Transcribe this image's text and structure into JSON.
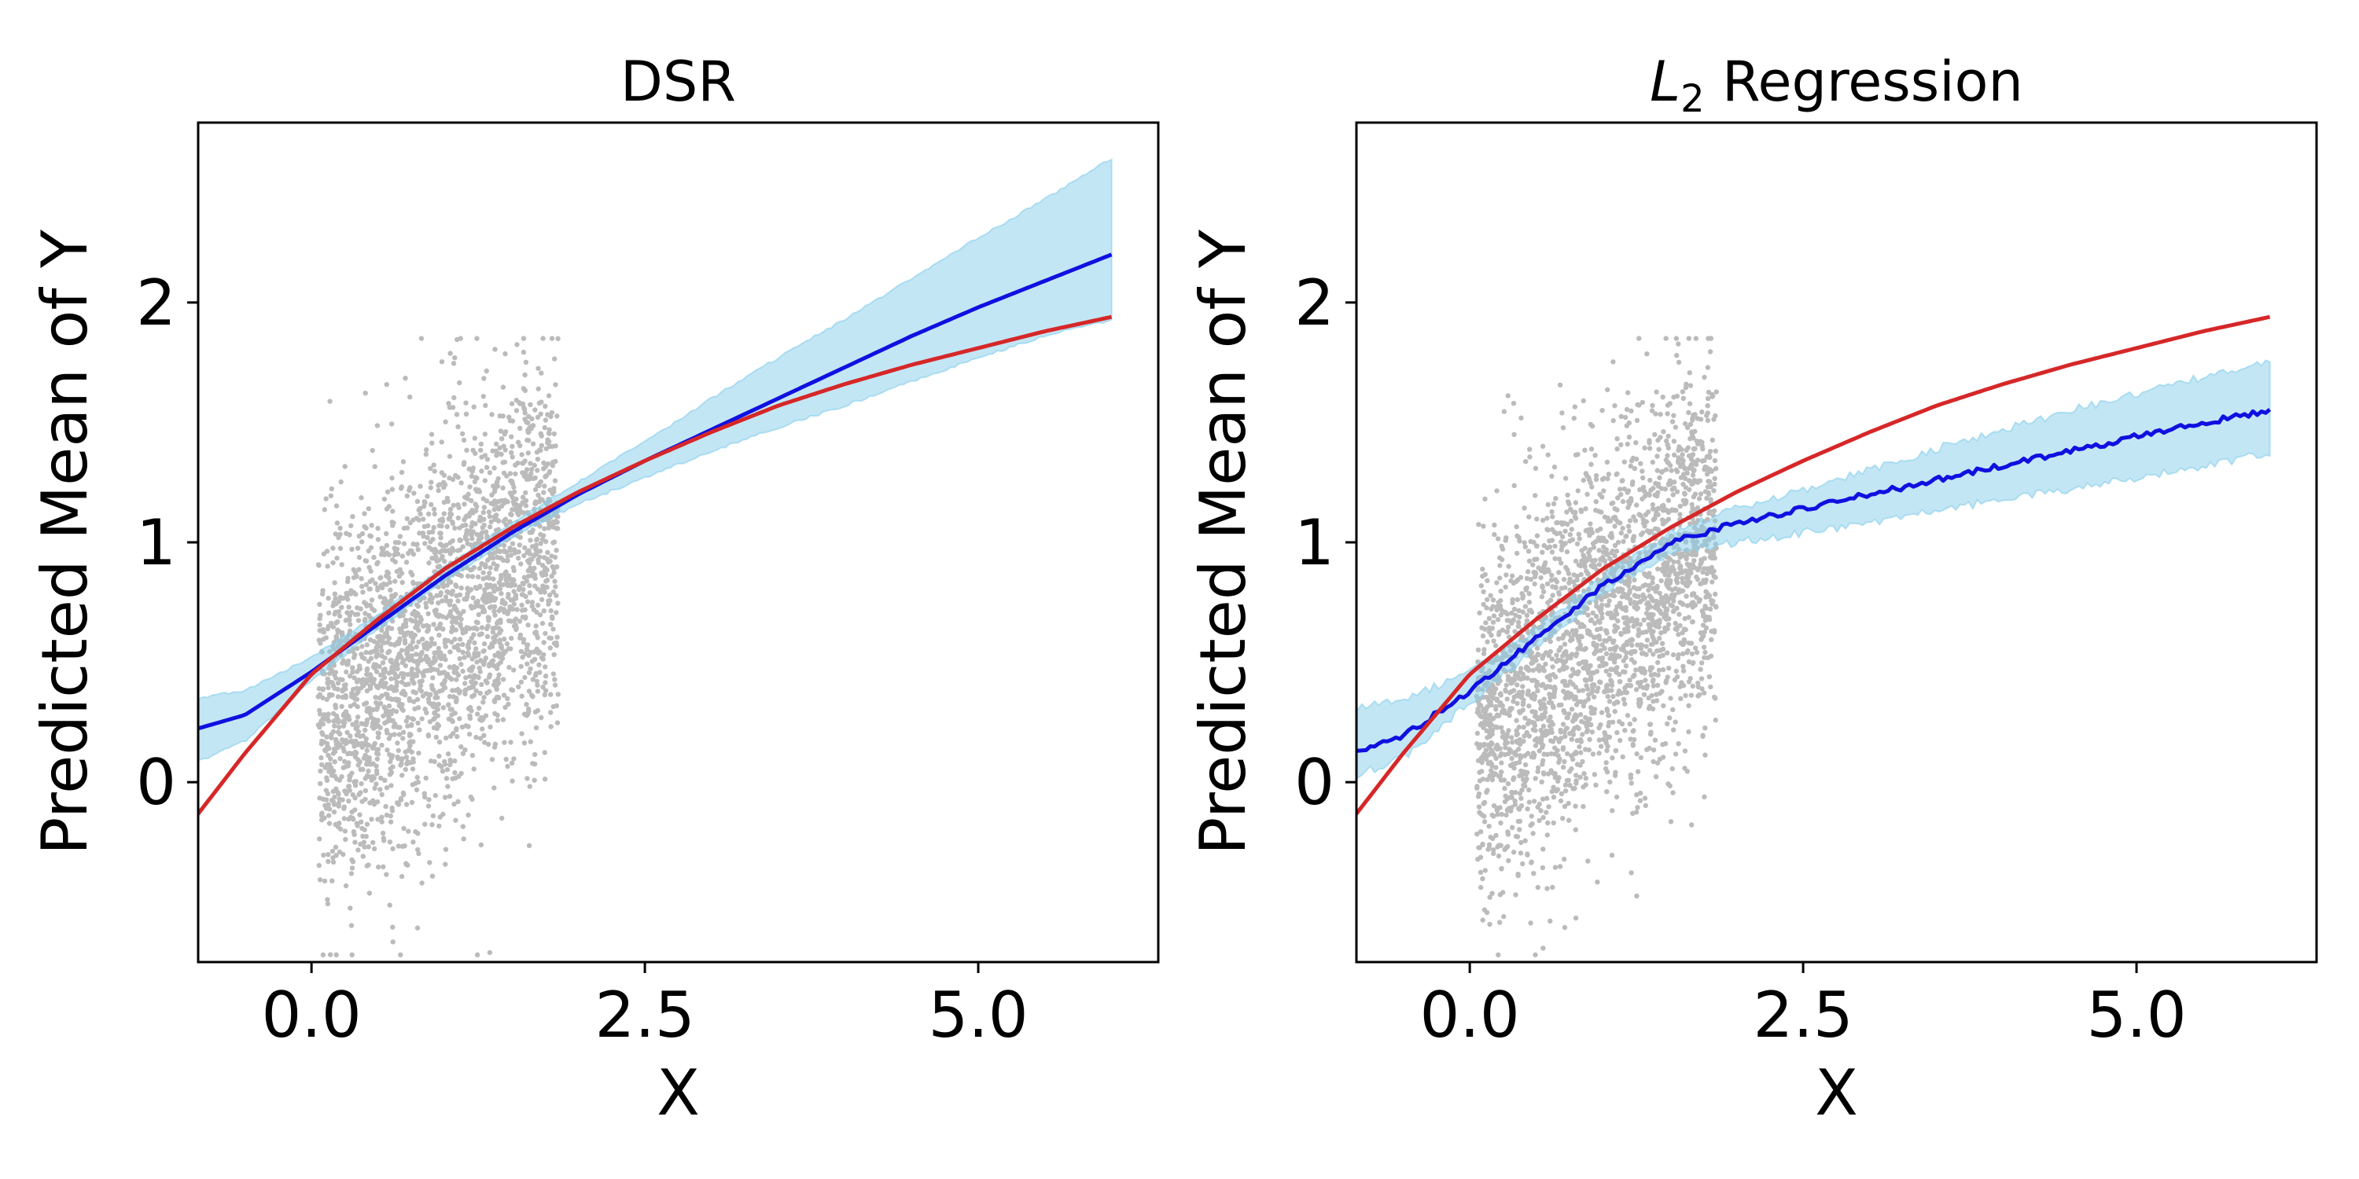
{
  "chart_data": [
    {
      "type": "line",
      "title": "DSR",
      "title_subscript": "",
      "title_rest": "",
      "xlabel": "X",
      "ylabel": "Predicted Mean of Y",
      "xlim": [
        -0.85,
        6.35
      ],
      "ylim": [
        -0.75,
        2.75
      ],
      "xticks": [
        0.0,
        2.5,
        5.0
      ],
      "xtick_labels": [
        "0.0",
        "2.5",
        "5.0"
      ],
      "yticks": [
        0,
        1,
        2
      ],
      "ytick_labels": [
        "0",
        "1",
        "2"
      ],
      "grid": false,
      "x": [
        -1.0,
        -0.5,
        0.0,
        0.5,
        1.0,
        1.5,
        2.0,
        2.5,
        3.0,
        3.5,
        4.0,
        4.5,
        5.0,
        5.5,
        6.0
      ],
      "series": [
        {
          "color": "#1010e0",
          "values": [
            0.2,
            0.28,
            0.46,
            0.66,
            0.86,
            1.04,
            1.2,
            1.34,
            1.47,
            1.6,
            1.73,
            1.86,
            1.98,
            2.09,
            2.2
          ]
        },
        {
          "color": "#d62728",
          "values": [
            -0.24,
            0.12,
            0.45,
            0.68,
            0.89,
            1.06,
            1.21,
            1.34,
            1.46,
            1.57,
            1.66,
            1.74,
            1.81,
            1.88,
            1.94
          ]
        }
      ],
      "band": {
        "color": "#87ceeb",
        "lower": [
          0.05,
          0.17,
          0.42,
          0.64,
          0.84,
          1.02,
          1.16,
          1.27,
          1.38,
          1.48,
          1.57,
          1.67,
          1.77,
          1.86,
          1.93
        ],
        "upper": [
          0.34,
          0.38,
          0.52,
          0.7,
          0.9,
          1.08,
          1.25,
          1.42,
          1.6,
          1.77,
          1.93,
          2.1,
          2.27,
          2.43,
          2.6
        ]
      },
      "scatter": {
        "color": "#bbbbbb",
        "x_range": [
          0.05,
          1.85
        ],
        "y_mean": 0.65,
        "y_sd": 0.38,
        "y_slope": 0.45,
        "n": 2600
      }
    },
    {
      "type": "line",
      "title": "L",
      "title_subscript": "2",
      "title_rest": " Regression",
      "xlabel": "X",
      "ylabel": "Predicted Mean of Y",
      "xlim": [
        -0.85,
        6.35
      ],
      "ylim": [
        -0.75,
        2.75
      ],
      "xticks": [
        0.0,
        2.5,
        5.0
      ],
      "xtick_labels": [
        "0.0",
        "2.5",
        "5.0"
      ],
      "yticks": [
        0,
        1,
        2
      ],
      "ytick_labels": [
        "0",
        "1",
        "2"
      ],
      "grid": false,
      "x": [
        -1.0,
        -0.5,
        0.0,
        0.5,
        1.0,
        1.5,
        2.0,
        2.5,
        3.0,
        3.5,
        4.0,
        4.5,
        5.0,
        5.5,
        6.0
      ],
      "series": [
        {
          "color": "#1010e0",
          "values": [
            0.11,
            0.19,
            0.38,
            0.6,
            0.82,
            1.0,
            1.08,
            1.14,
            1.2,
            1.26,
            1.32,
            1.38,
            1.44,
            1.5,
            1.55
          ]
        },
        {
          "color": "#d62728",
          "values": [
            -0.24,
            0.12,
            0.45,
            0.68,
            0.89,
            1.06,
            1.21,
            1.34,
            1.46,
            1.57,
            1.66,
            1.74,
            1.81,
            1.88,
            1.94
          ]
        }
      ],
      "band": {
        "color": "#87ceeb",
        "lower": [
          0.0,
          0.1,
          0.33,
          0.56,
          0.79,
          0.96,
          1.0,
          1.04,
          1.08,
          1.13,
          1.18,
          1.22,
          1.27,
          1.32,
          1.37
        ],
        "upper": [
          0.3,
          0.34,
          0.46,
          0.64,
          0.86,
          1.04,
          1.14,
          1.22,
          1.3,
          1.39,
          1.47,
          1.55,
          1.62,
          1.69,
          1.75
        ]
      },
      "scatter": {
        "color": "#bbbbbb",
        "x_range": [
          0.05,
          1.85
        ],
        "y_mean": 0.65,
        "y_sd": 0.38,
        "y_slope": 0.45,
        "n": 2600
      }
    }
  ]
}
